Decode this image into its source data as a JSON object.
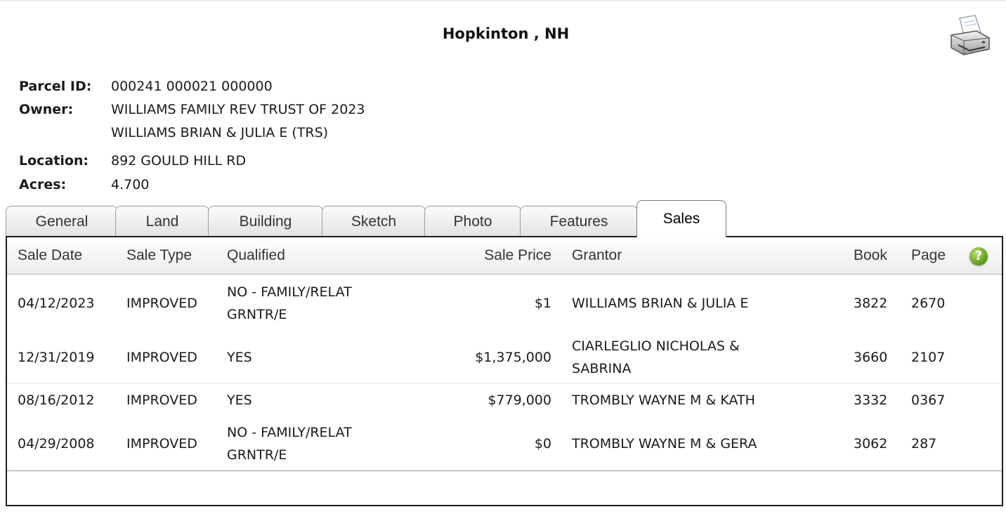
{
  "header": {
    "title": "Hopkinton , NH"
  },
  "icons": {
    "print": "printer-icon",
    "help": "help-icon",
    "help_glyph": "?"
  },
  "colors": {
    "help_green": "#5a9a1e",
    "panel_border": "#1f1f1f"
  },
  "parcel": {
    "parcel_id_label": "Parcel ID:",
    "parcel_id": "000241 000021 000000",
    "owner_label": "Owner:",
    "owner_line1": "WILLIAMS FAMILY REV TRUST OF 2023",
    "owner_line2": "WILLIAMS BRIAN & JULIA E (TRS)",
    "location_label": "Location:",
    "location": "892 GOULD HILL RD",
    "acres_label": "Acres:",
    "acres": "4.700"
  },
  "tabs": [
    {
      "label": "General"
    },
    {
      "label": "Land"
    },
    {
      "label": "Building"
    },
    {
      "label": "Sketch"
    },
    {
      "label": "Photo"
    },
    {
      "label": "Features"
    },
    {
      "label": "Sales",
      "active": true
    }
  ],
  "sales": {
    "columns": [
      "Sale Date",
      "Sale Type",
      "Qualified",
      "Sale Price",
      "Grantor",
      "Book",
      "Page"
    ],
    "rows": [
      {
        "date": "04/12/2023",
        "type": "IMPROVED",
        "qualified_1": "NO - FAMILY/RELAT",
        "qualified_2": "GRNTR/E",
        "price": "$1",
        "grantor_1": "WILLIAMS BRIAN & JULIA E",
        "grantor_2": "",
        "book": "3822",
        "page": "2670"
      },
      {
        "date": "12/31/2019",
        "type": "IMPROVED",
        "qualified_1": "YES",
        "qualified_2": "",
        "price": "$1,375,000",
        "grantor_1": "CIARLEGLIO NICHOLAS &",
        "grantor_2": "SABRINA",
        "book": "3660",
        "page": "2107"
      },
      {
        "date": "08/16/2012",
        "type": "IMPROVED",
        "qualified_1": "YES",
        "qualified_2": "",
        "price": "$779,000",
        "grantor_1": "TROMBLY WAYNE M & KATH",
        "grantor_2": "",
        "book": "3332",
        "page": "0367"
      },
      {
        "date": "04/29/2008",
        "type": "IMPROVED",
        "qualified_1": "NO - FAMILY/RELAT",
        "qualified_2": "GRNTR/E",
        "price": "$0",
        "grantor_1": "TROMBLY WAYNE M & GERA",
        "grantor_2": "",
        "book": "3062",
        "page": "287"
      }
    ]
  }
}
